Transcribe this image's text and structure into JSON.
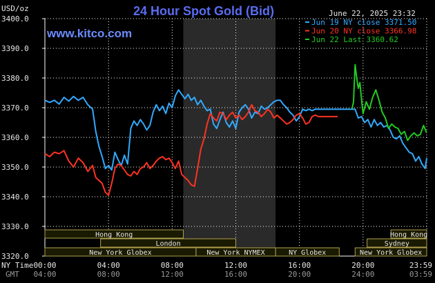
{
  "header": {
    "title": "24 Hour Spot Gold (Bid)",
    "datetime": "June 22, 2025 23:32",
    "site": "www.kitco.com",
    "ylabel": "USD/oz"
  },
  "time_labels": {
    "ny": "NY Time",
    "gmt": "GMT"
  },
  "colors": {
    "background": "#000000",
    "plot_grid": "#ffffff",
    "highlight": "#2a2a2a",
    "session_fill": "#1a1a00",
    "session_border": "#b0a050"
  },
  "sessions": {
    "row1": [
      {
        "label": "Hong Kong",
        "start": 0,
        "end": 8.7
      },
      {
        "label": "Hong Kong",
        "start": 21.75,
        "end": 24
      }
    ],
    "row2": [
      {
        "label": "London",
        "start": 3.5,
        "end": 12
      },
      {
        "label": "Sydney",
        "start": 20.25,
        "end": 24
      }
    ],
    "row3": [
      {
        "label": "New York Globex",
        "start": 0,
        "end": 9.5
      },
      {
        "label": "New York NYMEX",
        "start": 9.5,
        "end": 14.5
      },
      {
        "label": "NY Globex",
        "start": 14.5,
        "end": 18.5
      },
      {
        "label": "New York Globex",
        "start": 19.5,
        "end": 24
      }
    ]
  },
  "chart_data": {
    "type": "line",
    "title": "24 Hour Spot Gold (Bid)",
    "ylabel": "USD/oz",
    "ylim": [
      3320,
      3400
    ],
    "yticks": [
      3320,
      3330,
      3340,
      3350,
      3360,
      3370,
      3380,
      3390,
      3400
    ],
    "ytick_labels": [
      "3320.0",
      "3330.0",
      "3340.0",
      "3350.0",
      "3360.0",
      "3370.0",
      "3380.0",
      "3390.0",
      "3400.0"
    ],
    "xlim": [
      0,
      24
    ],
    "xticks_ny": [
      "00:00",
      "04:00",
      "08:00",
      "12:00",
      "16:00",
      "20:00",
      "23:59"
    ],
    "xticks_gmt": [
      "04:00",
      "08:00",
      "12:00",
      "16:00",
      "20:00",
      "24:00",
      "03:59"
    ],
    "xtick_positions": [
      0,
      4,
      8,
      12,
      16,
      20,
      24
    ],
    "highlight_band": [
      8.7,
      14.5
    ],
    "grid": true,
    "legend_position": "top-right",
    "series": [
      {
        "name": "Jun 19 NY close 3371.50",
        "color": "#33aaff",
        "points": [
          [
            0,
            3372.5
          ],
          [
            0.3,
            3371.8
          ],
          [
            0.6,
            3372.5
          ],
          [
            0.9,
            3371.2
          ],
          [
            1.2,
            3373.5
          ],
          [
            1.5,
            3372.2
          ],
          [
            1.8,
            3373.8
          ],
          [
            2.1,
            3372.5
          ],
          [
            2.4,
            3373.5
          ],
          [
            2.7,
            3371.0
          ],
          [
            3.0,
            3369.5
          ],
          [
            3.2,
            3362.0
          ],
          [
            3.4,
            3357.0
          ],
          [
            3.6,
            3353.5
          ],
          [
            3.8,
            3349.5
          ],
          [
            4.0,
            3350.5
          ],
          [
            4.2,
            3349.0
          ],
          [
            4.4,
            3355.0
          ],
          [
            4.6,
            3352.5
          ],
          [
            4.8,
            3350.5
          ],
          [
            5.0,
            3354.0
          ],
          [
            5.2,
            3351.0
          ],
          [
            5.4,
            3363.0
          ],
          [
            5.6,
            3365.5
          ],
          [
            5.8,
            3364.0
          ],
          [
            6.0,
            3366.0
          ],
          [
            6.2,
            3364.5
          ],
          [
            6.4,
            3362.5
          ],
          [
            6.6,
            3364.0
          ],
          [
            6.8,
            3368.5
          ],
          [
            7.0,
            3371.0
          ],
          [
            7.2,
            3369.0
          ],
          [
            7.4,
            3370.5
          ],
          [
            7.6,
            3368.0
          ],
          [
            7.8,
            3371.5
          ],
          [
            8.0,
            3370.0
          ],
          [
            8.2,
            3374.0
          ],
          [
            8.4,
            3376.0
          ],
          [
            8.6,
            3374.5
          ],
          [
            8.8,
            3373.0
          ],
          [
            9.0,
            3374.5
          ],
          [
            9.2,
            3372.5
          ],
          [
            9.4,
            3373.5
          ],
          [
            9.6,
            3371.0
          ],
          [
            9.8,
            3372.5
          ],
          [
            10.0,
            3370.5
          ],
          [
            10.2,
            3369.0
          ],
          [
            10.4,
            3369.5
          ],
          [
            10.6,
            3364.5
          ],
          [
            10.8,
            3363.0
          ],
          [
            11.0,
            3366.0
          ],
          [
            11.2,
            3368.5
          ],
          [
            11.4,
            3365.0
          ],
          [
            11.6,
            3363.5
          ],
          [
            11.8,
            3365.5
          ],
          [
            12.0,
            3363.0
          ],
          [
            12.2,
            3368.5
          ],
          [
            12.4,
            3370.0
          ],
          [
            12.6,
            3371.0
          ],
          [
            12.8,
            3369.5
          ],
          [
            13.0,
            3366.5
          ],
          [
            13.2,
            3368.5
          ],
          [
            13.4,
            3368.0
          ],
          [
            13.6,
            3370.5
          ],
          [
            13.8,
            3369.5
          ],
          [
            14.0,
            3370.0
          ],
          [
            14.2,
            3371.0
          ],
          [
            14.4,
            3372.0
          ],
          [
            14.6,
            3372.5
          ],
          [
            14.8,
            3372.5
          ],
          [
            15.0,
            3371.0
          ],
          [
            15.2,
            3370.0
          ],
          [
            15.4,
            3368.5
          ],
          [
            15.6,
            3367.5
          ],
          [
            15.8,
            3365.5
          ],
          [
            16.0,
            3367.0
          ],
          [
            16.2,
            3369.5
          ],
          [
            16.4,
            3369.0
          ],
          [
            16.6,
            3369.5
          ],
          [
            16.8,
            3369.0
          ],
          [
            17.0,
            3369.5
          ],
          [
            17.2,
            3369.5
          ],
          [
            17.4,
            3369.5
          ],
          [
            17.6,
            3369.5
          ],
          [
            17.8,
            3369.5
          ],
          [
            18.0,
            3369.5
          ],
          [
            18.2,
            3369.5
          ],
          [
            18.4,
            3369.5
          ],
          [
            18.6,
            3369.5
          ],
          [
            18.8,
            3369.5
          ],
          [
            19.0,
            3369.5
          ],
          [
            19.2,
            3369.5
          ],
          [
            19.3,
            3369.5
          ],
          [
            19.4,
            3369.5
          ],
          [
            19.5,
            3369.5
          ],
          [
            19.7,
            3366.5
          ],
          [
            19.9,
            3367.0
          ],
          [
            20.1,
            3365.0
          ],
          [
            20.3,
            3366.0
          ],
          [
            20.5,
            3363.5
          ],
          [
            20.7,
            3366.0
          ],
          [
            20.9,
            3364.0
          ],
          [
            21.1,
            3365.0
          ],
          [
            21.3,
            3363.5
          ],
          [
            21.5,
            3364.0
          ],
          [
            21.7,
            3362.5
          ],
          [
            21.9,
            3360.0
          ],
          [
            22.1,
            3359.5
          ],
          [
            22.3,
            3360.5
          ],
          [
            22.5,
            3358.0
          ],
          [
            22.7,
            3356.5
          ],
          [
            22.9,
            3355.0
          ],
          [
            23.1,
            3354.5
          ],
          [
            23.3,
            3352.0
          ],
          [
            23.5,
            3353.5
          ],
          [
            23.7,
            3351.0
          ],
          [
            23.9,
            3349.5
          ],
          [
            24.0,
            3353.0
          ]
        ]
      },
      {
        "name": "Jun 20 NY close 3366.98",
        "color": "#ff3322",
        "points": [
          [
            0,
            3354.5
          ],
          [
            0.3,
            3353.5
          ],
          [
            0.6,
            3355.0
          ],
          [
            0.9,
            3354.5
          ],
          [
            1.2,
            3355.5
          ],
          [
            1.5,
            3352.0
          ],
          [
            1.8,
            3350.0
          ],
          [
            2.1,
            3353.0
          ],
          [
            2.4,
            3351.5
          ],
          [
            2.7,
            3348.5
          ],
          [
            3.0,
            3350.5
          ],
          [
            3.2,
            3346.5
          ],
          [
            3.4,
            3345.5
          ],
          [
            3.6,
            3344.5
          ],
          [
            3.8,
            3341.5
          ],
          [
            4.0,
            3340.5
          ],
          [
            4.2,
            3344.5
          ],
          [
            4.4,
            3349.5
          ],
          [
            4.6,
            3351.0
          ],
          [
            4.8,
            3350.5
          ],
          [
            5.0,
            3349.0
          ],
          [
            5.2,
            3347.5
          ],
          [
            5.4,
            3347.0
          ],
          [
            5.6,
            3348.5
          ],
          [
            5.8,
            3347.5
          ],
          [
            6.0,
            3349.5
          ],
          [
            6.2,
            3350.0
          ],
          [
            6.4,
            3351.5
          ],
          [
            6.6,
            3349.5
          ],
          [
            6.8,
            3350.5
          ],
          [
            7.0,
            3352.0
          ],
          [
            7.2,
            3353.0
          ],
          [
            7.4,
            3353.5
          ],
          [
            7.6,
            3352.5
          ],
          [
            7.8,
            3353.0
          ],
          [
            8.0,
            3351.5
          ],
          [
            8.2,
            3349.5
          ],
          [
            8.4,
            3352.0
          ],
          [
            8.6,
            3347.5
          ],
          [
            8.8,
            3346.5
          ],
          [
            9.0,
            3345.5
          ],
          [
            9.2,
            3344.0
          ],
          [
            9.4,
            3343.5
          ],
          [
            9.6,
            3349.5
          ],
          [
            9.8,
            3356.0
          ],
          [
            10.0,
            3359.5
          ],
          [
            10.2,
            3364.5
          ],
          [
            10.4,
            3368.0
          ],
          [
            10.6,
            3366.5
          ],
          [
            10.8,
            3365.5
          ],
          [
            11.0,
            3368.5
          ],
          [
            11.2,
            3368.0
          ],
          [
            11.4,
            3366.0
          ],
          [
            11.6,
            3367.5
          ],
          [
            11.8,
            3368.5
          ],
          [
            12.0,
            3366.5
          ],
          [
            12.2,
            3367.5
          ],
          [
            12.4,
            3366.0
          ],
          [
            12.6,
            3367.0
          ],
          [
            12.8,
            3368.5
          ],
          [
            13.0,
            3371.0
          ],
          [
            13.2,
            3369.0
          ],
          [
            13.4,
            3368.5
          ],
          [
            13.6,
            3367.0
          ],
          [
            13.8,
            3368.0
          ],
          [
            14.0,
            3369.5
          ],
          [
            14.2,
            3368.5
          ],
          [
            14.4,
            3366.5
          ],
          [
            14.6,
            3367.5
          ],
          [
            14.8,
            3366.5
          ],
          [
            15.0,
            3365.5
          ],
          [
            15.2,
            3364.5
          ],
          [
            15.4,
            3365.0
          ],
          [
            15.6,
            3366.0
          ],
          [
            15.8,
            3367.5
          ],
          [
            16.0,
            3368.0
          ],
          [
            16.2,
            3366.5
          ],
          [
            16.4,
            3364.5
          ],
          [
            16.6,
            3365.0
          ],
          [
            16.8,
            3367.0
          ],
          [
            17.0,
            3367.5
          ],
          [
            17.2,
            3367.0
          ],
          [
            17.4,
            3367.0
          ],
          [
            17.6,
            3367.0
          ],
          [
            17.8,
            3367.0
          ],
          [
            18.0,
            3367.0
          ],
          [
            18.2,
            3367.0
          ],
          [
            18.4,
            3367.0
          ]
        ]
      },
      {
        "name": "Jun 22 Last 3360.62",
        "color": "#22cc22",
        "points": [
          [
            19.3,
            3369.5
          ],
          [
            19.4,
            3372.0
          ],
          [
            19.5,
            3384.5
          ],
          [
            19.6,
            3380.0
          ],
          [
            19.7,
            3376.5
          ],
          [
            19.8,
            3378.5
          ],
          [
            19.9,
            3373.0
          ],
          [
            20.0,
            3368.0
          ],
          [
            20.2,
            3372.0
          ],
          [
            20.4,
            3369.5
          ],
          [
            20.6,
            3373.5
          ],
          [
            20.8,
            3376.0
          ],
          [
            21.0,
            3372.5
          ],
          [
            21.2,
            3368.5
          ],
          [
            21.4,
            3366.5
          ],
          [
            21.6,
            3363.0
          ],
          [
            21.8,
            3364.5
          ],
          [
            22.0,
            3363.5
          ],
          [
            22.2,
            3363.0
          ],
          [
            22.4,
            3361.0
          ],
          [
            22.6,
            3362.0
          ],
          [
            22.8,
            3359.0
          ],
          [
            23.0,
            3360.5
          ],
          [
            23.2,
            3361.5
          ],
          [
            23.4,
            3360.5
          ],
          [
            23.6,
            3361.0
          ],
          [
            23.8,
            3364.0
          ],
          [
            24.0,
            3361.5
          ]
        ]
      }
    ]
  }
}
